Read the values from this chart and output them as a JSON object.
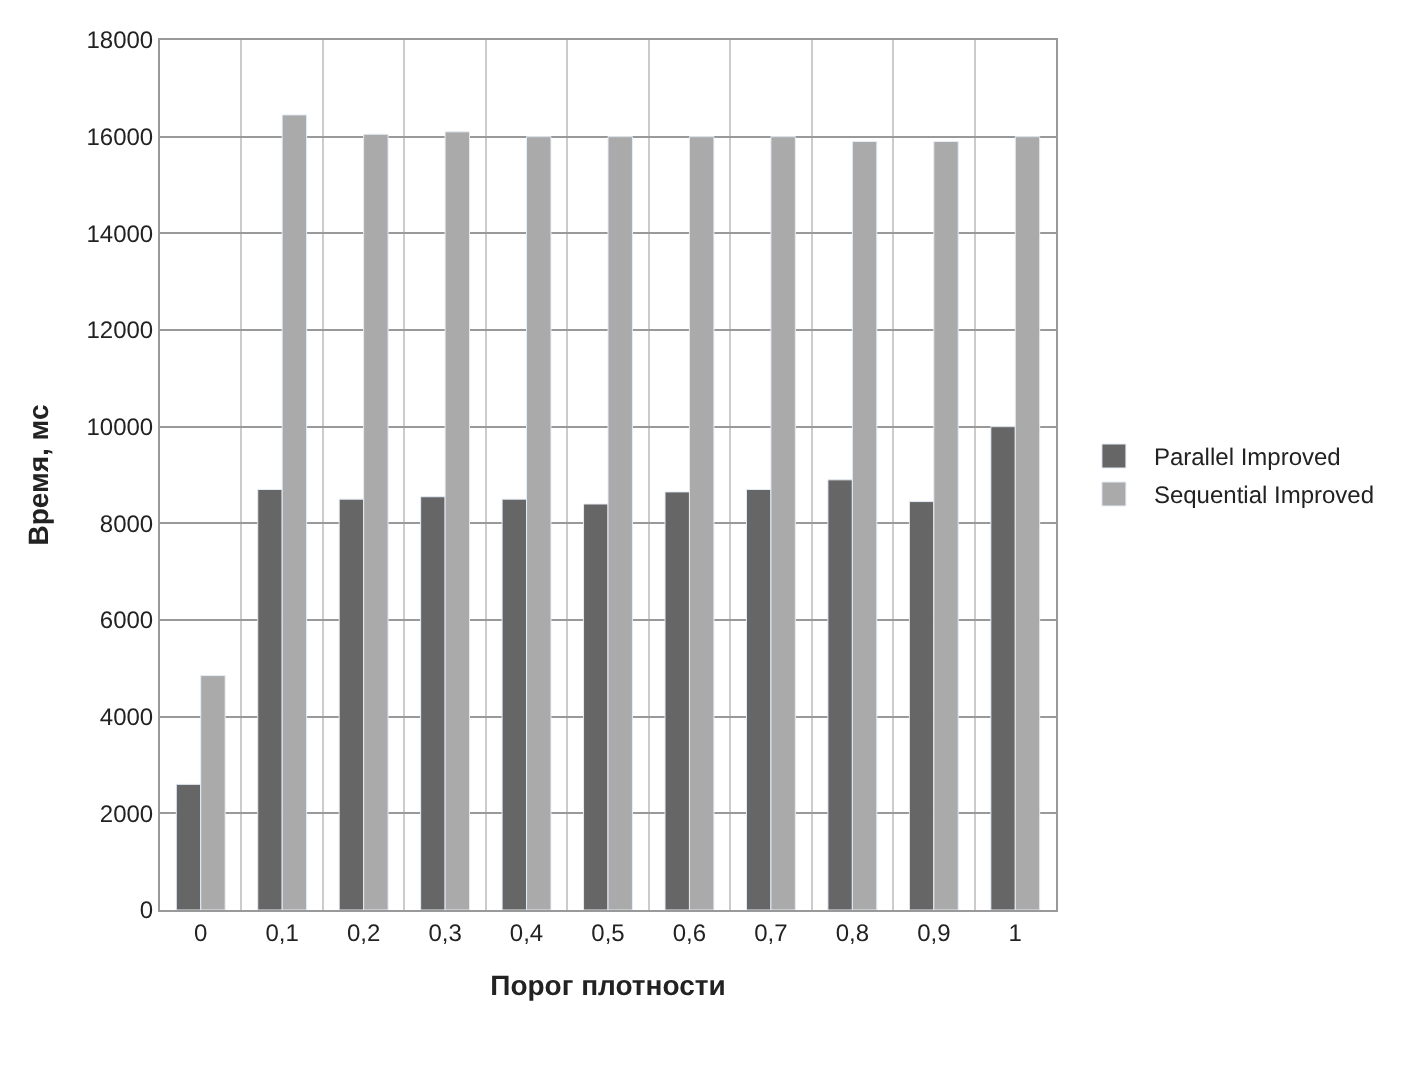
{
  "chart_data": {
    "type": "bar",
    "xlabel": "Порог плотности",
    "ylabel": "Время, мс",
    "categories": [
      "0",
      "0,1",
      "0,2",
      "0,3",
      "0,4",
      "0,5",
      "0,6",
      "0,7",
      "0,8",
      "0,9",
      "1"
    ],
    "series": [
      {
        "name": "Parallel Improved",
        "color": "#666666",
        "values": [
          2600,
          8700,
          8500,
          8550,
          8500,
          8400,
          8650,
          8700,
          8900,
          8450,
          10000
        ]
      },
      {
        "name": "Sequential Improved",
        "color": "#aaaaaa",
        "values": [
          4850,
          16450,
          16050,
          16100,
          16000,
          16000,
          16000,
          16000,
          15900,
          15900,
          16000
        ]
      }
    ],
    "ylim": [
      0,
      18000
    ],
    "yticks": [
      0,
      2000,
      4000,
      6000,
      8000,
      10000,
      12000,
      14000,
      16000,
      18000
    ],
    "grid": true,
    "legend": "right"
  }
}
